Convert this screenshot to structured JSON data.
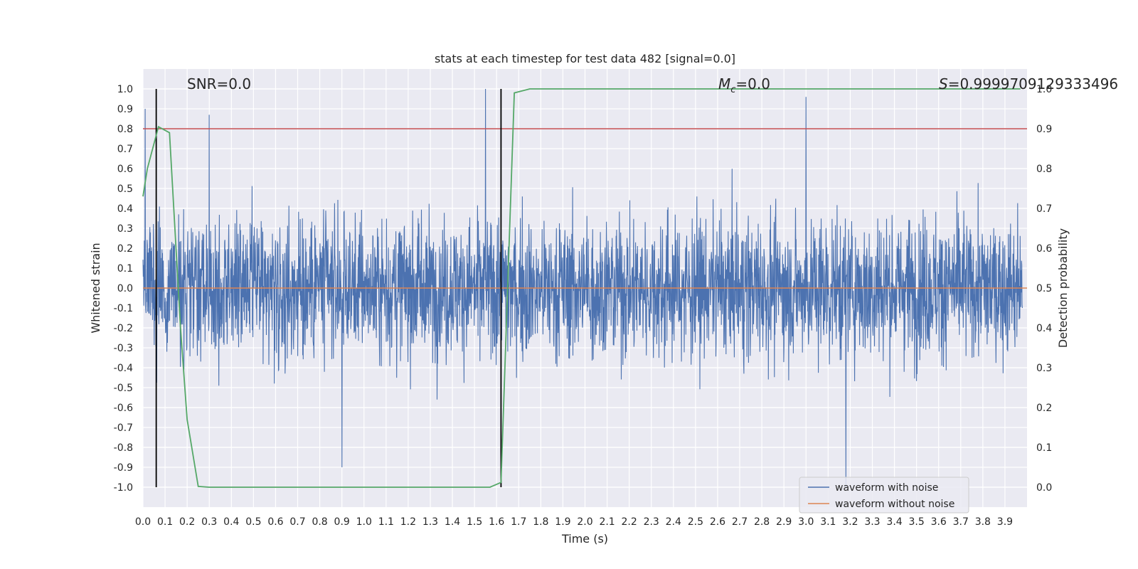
{
  "chart_data": {
    "type": "line",
    "title": "stats at each timestep for test data 482 [signal=0.0]",
    "xlabel": "Time (s)",
    "ylabel": "Whitened strain",
    "ylabel_right": "Detection probability",
    "xlim": [
      0.0,
      4.0
    ],
    "ylim": [
      -1.1,
      1.1
    ],
    "ylim_right": [
      -0.05,
      1.05
    ],
    "x_ticks": [
      "0.0",
      "0.1",
      "0.2",
      "0.3",
      "0.4",
      "0.5",
      "0.6",
      "0.7",
      "0.8",
      "0.9",
      "1.0",
      "1.1",
      "1.2",
      "1.3",
      "1.4",
      "1.5",
      "1.6",
      "1.7",
      "1.8",
      "1.9",
      "2.0",
      "2.1",
      "2.2",
      "2.3",
      "2.4",
      "2.5",
      "2.6",
      "2.7",
      "2.8",
      "2.9",
      "3.0",
      "3.1",
      "3.2",
      "3.3",
      "3.4",
      "3.5",
      "3.6",
      "3.7",
      "3.8",
      "3.9"
    ],
    "y_ticks": [
      "-1.0",
      "-0.9",
      "-0.8",
      "-0.7",
      "-0.6",
      "-0.5",
      "-0.4",
      "-0.3",
      "-0.2",
      "-0.1",
      "0.0",
      "0.1",
      "0.2",
      "0.3",
      "0.4",
      "0.5",
      "0.6",
      "0.7",
      "0.8",
      "0.9",
      "1.0"
    ],
    "y_ticks_right": [
      "0.0",
      "0.1",
      "0.2",
      "0.3",
      "0.4",
      "0.5",
      "0.6",
      "0.7",
      "0.8",
      "0.9",
      "1.0"
    ],
    "grid": true,
    "legend_position": "lower-right",
    "annotations": {
      "snr": "SNR=0.0",
      "mc_symbol": "M",
      "mc_sub": "c",
      "mc_value": "=0.0",
      "s_symbol": "S",
      "s_value": "=0.9999709129333496"
    },
    "series": [
      {
        "name": "waveform with noise",
        "color": "#4c72b0",
        "description_envelope_peaks": [
          {
            "x": 0.01,
            "y": 0.9
          },
          {
            "x": 0.3,
            "y": 0.87
          },
          {
            "x": 0.9,
            "y": -0.9
          },
          {
            "x": 1.55,
            "y": 1.0
          },
          {
            "x": 3.0,
            "y": 0.96
          },
          {
            "x": 3.18,
            "y": -1.0
          }
        ]
      },
      {
        "name": "waveform without noise",
        "color": "#dd8452",
        "x": [
          0.0,
          4.0
        ],
        "y": [
          0.0,
          0.0
        ]
      },
      {
        "color": "#55a868",
        "axis": "right",
        "x": [
          0.0,
          0.02,
          0.07,
          0.12,
          0.17,
          0.2,
          0.25,
          0.3,
          1.0,
          1.57,
          1.62,
          1.65,
          1.68,
          1.75,
          3.97
        ],
        "y": [
          0.73,
          0.8,
          0.905,
          0.89,
          0.4,
          0.17,
          0.002,
          0.0,
          0.0,
          0.0,
          0.012,
          0.5,
          0.99,
          1.0,
          1.0
        ]
      }
    ],
    "threshold": {
      "value": 0.9,
      "axis": "right",
      "color": "#c44e52"
    },
    "vertical_markers": [
      {
        "x": 0.06,
        "color": "#000000"
      },
      {
        "x": 1.62,
        "color": "#000000"
      }
    ]
  }
}
